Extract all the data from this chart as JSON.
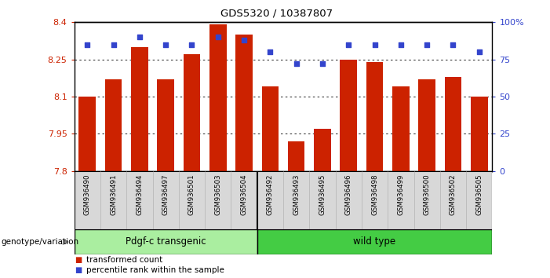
{
  "title": "GDS5320 / 10387807",
  "categories": [
    "GSM936490",
    "GSM936491",
    "GSM936494",
    "GSM936497",
    "GSM936501",
    "GSM936503",
    "GSM936504",
    "GSM936492",
    "GSM936493",
    "GSM936495",
    "GSM936496",
    "GSM936498",
    "GSM936499",
    "GSM936500",
    "GSM936502",
    "GSM936505"
  ],
  "bar_values": [
    8.1,
    8.17,
    8.3,
    8.17,
    8.27,
    8.39,
    8.35,
    8.14,
    7.92,
    7.97,
    8.25,
    8.24,
    8.14,
    8.17,
    8.18,
    8.1
  ],
  "percentile_values": [
    85,
    85,
    90,
    85,
    85,
    90,
    88,
    80,
    72,
    72,
    85,
    85,
    85,
    85,
    85,
    80
  ],
  "bar_color": "#cc2200",
  "percentile_color": "#3344cc",
  "ymin": 7.8,
  "ymax": 8.4,
  "yticks": [
    7.8,
    7.95,
    8.1,
    8.25,
    8.4
  ],
  "ytick_labels": [
    "7.8",
    "7.95",
    "8.1",
    "8.25",
    "8.4"
  ],
  "right_yticks": [
    0,
    25,
    50,
    75,
    100
  ],
  "right_ytick_labels": [
    "0",
    "25",
    "50",
    "75",
    "100%"
  ],
  "group1_label": "Pdgf-c transgenic",
  "group2_label": "wild type",
  "group1_count": 7,
  "group2_count": 9,
  "group1_color": "#aaeea0",
  "group2_color": "#44cc44",
  "genotype_label": "genotype/variation",
  "legend1": "transformed count",
  "legend2": "percentile rank within the sample",
  "bar_bottom": 7.8,
  "grid_lines": [
    7.95,
    8.1,
    8.25
  ],
  "background_color": "#ffffff",
  "tick_label_bg": "#d8d8d8"
}
